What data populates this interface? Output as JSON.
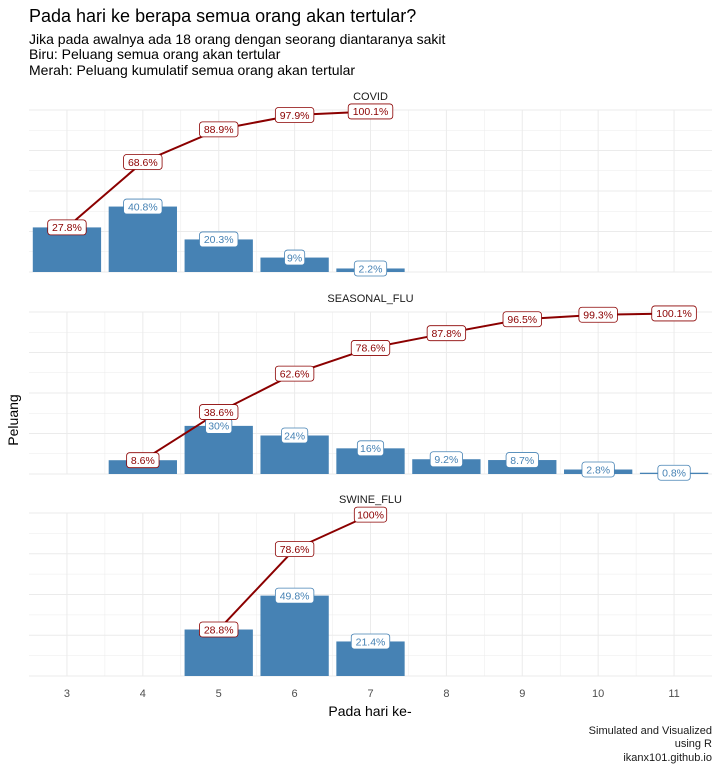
{
  "chart_data": {
    "type": "bar",
    "title": "Pada hari ke berapa semua orang akan tertular?",
    "subtitle_lines": [
      "Jika pada awalnya ada 18 orang dengan seorang diantaranya sakit",
      "Biru: Peluang semua orang akan tertular",
      "Merah: Peluang kumulatif semua orang akan tertular"
    ],
    "xlabel": "Pada hari ke-",
    "ylabel": "Peluang",
    "x_ticks": [
      "3",
      "4",
      "5",
      "6",
      "7",
      "8",
      "9",
      "10",
      "11"
    ],
    "x_range": [
      2.5,
      11.5
    ],
    "y_range": [
      0,
      1.01
    ],
    "caption_lines": [
      "Simulated and Visualized",
      "using R",
      "ikanx101.github.io"
    ],
    "colors": {
      "bar": "#4682b4",
      "line": "#8b0000",
      "grid": "#ebebeb"
    },
    "panels": [
      {
        "name": "COVID",
        "x": [
          3,
          4,
          5,
          6,
          7
        ],
        "probability": [
          0.278,
          0.408,
          0.203,
          0.09,
          0.022
        ],
        "probability_labels": [
          "",
          "40.8%",
          "20.3%",
          "9%",
          "2.2%"
        ],
        "cumulative": [
          0.278,
          0.686,
          0.889,
          0.979,
          1.001
        ],
        "cumulative_labels": [
          "27.8%",
          "68.6%",
          "88.9%",
          "97.9%",
          "100.1%"
        ]
      },
      {
        "name": "SEASONAL_FLU",
        "x": [
          4,
          5,
          6,
          7,
          8,
          9,
          10,
          11
        ],
        "probability": [
          0.086,
          0.3,
          0.24,
          0.16,
          0.092,
          0.087,
          0.028,
          0.008
        ],
        "probability_labels": [
          "",
          "30%",
          "24%",
          "16%",
          "9.2%",
          "8.7%",
          "2.8%",
          "0.8%"
        ],
        "cumulative": [
          0.086,
          0.386,
          0.626,
          0.786,
          0.878,
          0.965,
          0.993,
          1.001
        ],
        "cumulative_labels": [
          "8.6%",
          "38.6%",
          "62.6%",
          "78.6%",
          "87.8%",
          "96.5%",
          "99.3%",
          "100.1%"
        ]
      },
      {
        "name": "SWINE_FLU",
        "x": [
          5,
          6,
          7
        ],
        "probability": [
          0.288,
          0.498,
          0.214
        ],
        "probability_labels": [
          "",
          "49.8%",
          "21.4%"
        ],
        "cumulative": [
          0.288,
          0.786,
          1.0
        ],
        "cumulative_labels": [
          "28.8%",
          "78.6%",
          "100%"
        ]
      }
    ]
  }
}
